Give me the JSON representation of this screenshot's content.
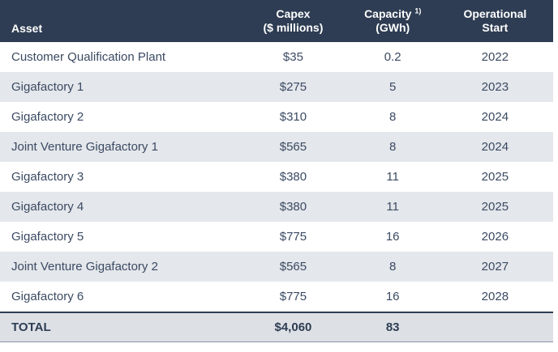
{
  "table": {
    "header": {
      "asset": "Asset",
      "capex_line1": "Capex",
      "capex_line2": "($ millions)",
      "capacity_line1": "Capacity",
      "capacity_sup": "1)",
      "capacity_line2": "(GWh)",
      "operational_line1": "Operational",
      "operational_line2": "Start"
    },
    "rows": [
      {
        "asset": "Customer Qualification Plant",
        "capex": "$35",
        "capacity": "0.2",
        "start": "2022"
      },
      {
        "asset": "Gigafactory 1",
        "capex": "$275",
        "capacity": "5",
        "start": "2023"
      },
      {
        "asset": "Gigafactory 2",
        "capex": "$310",
        "capacity": "8",
        "start": "2024"
      },
      {
        "asset": "Joint Venture Gigafactory 1",
        "capex": "$565",
        "capacity": "8",
        "start": "2024"
      },
      {
        "asset": "Gigafactory 3",
        "capex": "$380",
        "capacity": "11",
        "start": "2025"
      },
      {
        "asset": "Gigafactory 4",
        "capex": "$380",
        "capacity": "11",
        "start": "2025"
      },
      {
        "asset": "Gigafactory 5",
        "capex": "$775",
        "capacity": "16",
        "start": "2026"
      },
      {
        "asset": "Joint Venture Gigafactory 2",
        "capex": "$565",
        "capacity": "8",
        "start": "2027"
      },
      {
        "asset": "Gigafactory 6",
        "capex": "$775",
        "capacity": "16",
        "start": "2028"
      }
    ],
    "total": {
      "asset": "TOTAL",
      "capex": "$4,060",
      "capacity": "83",
      "start": ""
    }
  },
  "colors": {
    "header_bg": "#2e3d53",
    "row_alt_bg": "#e4e7eb",
    "total_bg": "#dde1e6",
    "body_text": "#3b4a63",
    "border": "#2e3d53"
  },
  "chart_data": {
    "type": "table",
    "columns": [
      "Asset",
      "Capex ($ millions)",
      "Capacity (GWh)",
      "Operational Start"
    ],
    "footnote_marker_on_capacity": "1)",
    "rows": [
      [
        "Customer Qualification Plant",
        35,
        0.2,
        2022
      ],
      [
        "Gigafactory 1",
        275,
        5,
        2023
      ],
      [
        "Gigafactory 2",
        310,
        8,
        2024
      ],
      [
        "Joint Venture Gigafactory 1",
        565,
        8,
        2024
      ],
      [
        "Gigafactory 3",
        380,
        11,
        2025
      ],
      [
        "Gigafactory 4",
        380,
        11,
        2025
      ],
      [
        "Gigafactory 5",
        775,
        16,
        2026
      ],
      [
        "Joint Venture Gigafactory 2",
        565,
        8,
        2027
      ],
      [
        "Gigafactory 6",
        775,
        16,
        2028
      ]
    ],
    "total_row": {
      "label": "TOTAL",
      "capex_total": 4060,
      "capacity_total": 83
    }
  }
}
